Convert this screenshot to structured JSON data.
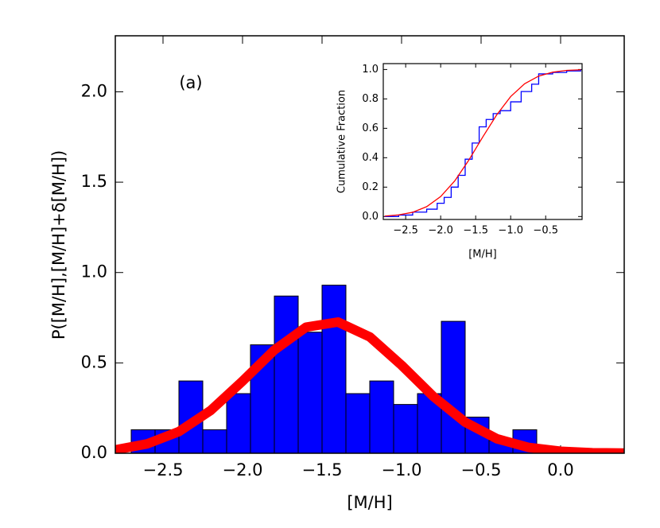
{
  "chart_data": [
    {
      "type": "histogram",
      "annotation": "(a)",
      "xlabel": "[M/H]",
      "ylabel": "P([M/H],[M/H]+δ[M/H])",
      "bins": [
        -2.7,
        -2.55,
        -2.4,
        -2.25,
        -2.1,
        -1.95,
        -1.8,
        -1.65,
        -1.5,
        -1.35,
        -1.2,
        -1.05,
        -0.9,
        -0.75,
        -0.6,
        -0.45,
        -0.3,
        -0.15
      ],
      "values": [
        0.13,
        0.13,
        0.4,
        0.13,
        0.33,
        0.6,
        0.87,
        0.67,
        0.93,
        0.33,
        0.4,
        0.27,
        0.33,
        0.73,
        0.2,
        0.07,
        0.13
      ],
      "color": "#0000ff",
      "fit": {
        "color": "#ff0000",
        "x": [
          -2.8,
          -2.6,
          -2.4,
          -2.2,
          -2.0,
          -1.8,
          -1.6,
          -1.4,
          -1.2,
          -1.0,
          -0.8,
          -0.6,
          -0.4,
          -0.2,
          0.0,
          0.2,
          0.4
        ],
        "values": [
          0.019,
          0.052,
          0.12,
          0.237,
          0.399,
          0.571,
          0.698,
          0.726,
          0.644,
          0.487,
          0.314,
          0.172,
          0.08,
          0.032,
          0.011,
          0.003,
          0.001
        ]
      },
      "xlim": [
        -2.8,
        0.4
      ],
      "ylim": [
        0,
        2.31
      ],
      "xticks": [
        {
          "value": -2.5,
          "label": "−2.5"
        },
        {
          "value": -2.0,
          "label": "−2.0"
        },
        {
          "value": -1.5,
          "label": "−1.5"
        },
        {
          "value": -1.0,
          "label": "−1.0"
        },
        {
          "value": -0.5,
          "label": "−0.5"
        },
        {
          "value": 0.0,
          "label": "0.0"
        }
      ],
      "yticks": [
        {
          "value": 0.0,
          "label": "0.0"
        },
        0.5,
        {
          "value": 1.0,
          "label": "1.0"
        },
        1.5,
        {
          "value": 2.0,
          "label": "2.0"
        }
      ]
    },
    {
      "type": "line",
      "xlabel": "[M/H]",
      "ylabel": "Cumulative Fraction",
      "series": [
        {
          "color": "#0000ff",
          "step": true,
          "x": [
            -2.8,
            -2.6,
            -2.4,
            -2.2,
            -2.05,
            -1.95,
            -1.85,
            -1.75,
            -1.65,
            -1.55,
            -1.45,
            -1.35,
            -1.25,
            -1.15,
            -1.0,
            -0.85,
            -0.7,
            -0.6,
            -0.4,
            -0.2,
            0.0
          ],
          "values": [
            0.0,
            0.01,
            0.03,
            0.05,
            0.09,
            0.13,
            0.2,
            0.28,
            0.39,
            0.5,
            0.61,
            0.66,
            0.7,
            0.72,
            0.78,
            0.85,
            0.9,
            0.97,
            0.98,
            0.99,
            1.0
          ]
        },
        {
          "color": "#ff0000",
          "step": false,
          "x": [
            -2.8,
            -2.6,
            -2.4,
            -2.2,
            -2.0,
            -1.8,
            -1.6,
            -1.4,
            -1.2,
            -1.0,
            -0.8,
            -0.6,
            -0.4,
            -0.2,
            0.0
          ],
          "values": [
            0.003,
            0.011,
            0.029,
            0.067,
            0.136,
            0.242,
            0.382,
            0.54,
            0.691,
            0.816,
            0.903,
            0.955,
            0.982,
            0.994,
            0.998
          ]
        }
      ],
      "xlim": [
        -2.82,
        0.02
      ],
      "ylim": [
        -0.02,
        1.04
      ],
      "xticks": [
        {
          "value": -2.5,
          "label": "−2.5"
        },
        {
          "value": -2.0,
          "label": "−2.0"
        },
        {
          "value": -1.5,
          "label": "−1.5"
        },
        {
          "value": -1.0,
          "label": "−1.0"
        },
        {
          "value": -0.5,
          "label": "−0.5"
        }
      ],
      "yticks": [
        {
          "value": 0.0,
          "label": "0.0"
        },
        0.2,
        0.4,
        0.6,
        0.8,
        {
          "value": 1.0,
          "label": "1.0"
        }
      ]
    }
  ]
}
